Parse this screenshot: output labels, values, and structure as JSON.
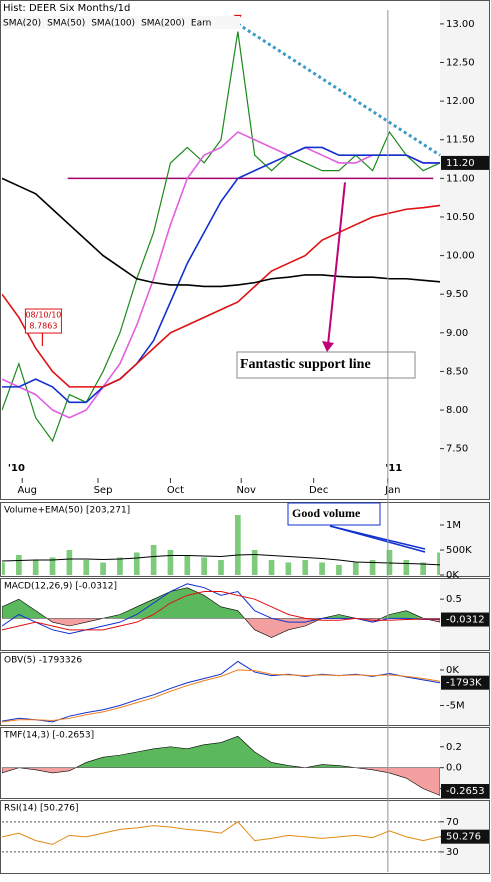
{
  "chart_data": [
    {
      "type": "price",
      "title": "Hist: DEER Six Months/1d",
      "x": [
        0,
        1,
        2,
        3,
        4,
        5,
        6,
        7,
        8,
        9,
        10,
        11,
        12,
        13,
        14,
        15,
        16,
        17,
        18,
        19,
        20,
        21,
        22,
        23,
        24,
        25,
        26
      ],
      "xlim": [
        0,
        26
      ],
      "xticks": [
        {
          "value": 1.2,
          "label": "Aug"
        },
        {
          "value": 5.7,
          "label": "Sep"
        },
        {
          "value": 10,
          "label": "Oct"
        },
        {
          "value": 14.2,
          "label": "Nov"
        },
        {
          "value": 18.5,
          "label": "Dec"
        },
        {
          "value": 22.9,
          "label": "Jan"
        }
      ],
      "year_ticks": [
        {
          "value": 0.5,
          "label": "'10"
        },
        {
          "value": 22.9,
          "label": "'11"
        }
      ],
      "ylim": [
        7.12,
        13.18
      ],
      "yticks": [
        {
          "value": 7.5,
          "label": "7.50"
        },
        {
          "value": 8,
          "label": "8.00"
        },
        {
          "value": 8.5,
          "label": "8.50"
        },
        {
          "value": 9,
          "label": "9.00"
        },
        {
          "value": 9.5,
          "label": "9.50"
        },
        {
          "value": 10,
          "label": "10.00"
        },
        {
          "value": 10.5,
          "label": "10.50"
        },
        {
          "value": 11,
          "label": "11.00"
        },
        {
          "value": 11.5,
          "label": "11.50"
        },
        {
          "value": 12,
          "label": "12.00"
        },
        {
          "value": 12.5,
          "label": "12.50"
        },
        {
          "value": 13,
          "label": "13.00"
        }
      ],
      "color": "#1a8a1a",
      "values": [
        8.0,
        8.6,
        7.9,
        7.6,
        8.2,
        8.1,
        8.5,
        9.0,
        9.7,
        10.3,
        11.2,
        11.4,
        11.2,
        11.5,
        12.9,
        11.3,
        11.1,
        11.3,
        11.2,
        11.1,
        11.1,
        11.3,
        11.1,
        11.6,
        11.3,
        11.1,
        11.2
      ],
      "series": [
        {
          "name": "SMA(20)",
          "color": "#e060e0",
          "type": "line",
          "values": [
            8.4,
            8.3,
            8.2,
            8.0,
            7.9,
            8.0,
            8.3,
            8.6,
            9.1,
            9.7,
            10.4,
            11.0,
            11.3,
            11.4,
            11.6,
            11.5,
            11.4,
            11.3,
            11.4,
            11.3,
            11.2,
            11.2,
            11.3,
            11.3,
            11.3,
            11.2,
            11.2
          ]
        },
        {
          "name": "SMA(50)",
          "color": "#1030d0",
          "type": "line",
          "values": [
            8.3,
            8.3,
            8.4,
            8.3,
            8.1,
            8.1,
            8.3,
            8.4,
            8.6,
            8.9,
            9.4,
            9.9,
            10.3,
            10.7,
            11.0,
            11.1,
            11.2,
            11.3,
            11.4,
            11.4,
            11.3,
            11.3,
            11.3,
            11.3,
            11.3,
            11.2,
            11.2
          ]
        },
        {
          "name": "SMA(100)",
          "color": "#e01010",
          "type": "line",
          "values": [
            9.5,
            9.2,
            8.8,
            8.5,
            8.3,
            8.3,
            8.3,
            8.4,
            8.6,
            8.8,
            9.0,
            9.1,
            9.2,
            9.3,
            9.4,
            9.6,
            9.8,
            9.9,
            10.0,
            10.2,
            10.3,
            10.4,
            10.5,
            10.55,
            10.6,
            10.62,
            10.65
          ]
        },
        {
          "name": "SMA(200)",
          "color": "#000000",
          "type": "line",
          "values": [
            11.0,
            10.9,
            10.8,
            10.6,
            10.4,
            10.2,
            10.0,
            9.85,
            9.7,
            9.65,
            9.62,
            9.62,
            9.6,
            9.6,
            9.62,
            9.65,
            9.7,
            9.72,
            9.75,
            9.75,
            9.73,
            9.72,
            9.72,
            9.7,
            9.7,
            9.68,
            9.66
          ]
        }
      ],
      "earnings": {
        "name": "Earn",
        "color": "#e01010",
        "x": [
          14
        ],
        "values": [
          13.0
        ]
      },
      "current": {
        "value": 11.2,
        "label": "11.20"
      },
      "support": {
        "value": 11.0,
        "x": [
          3.9,
          25.6
        ],
        "color": "#a0006a"
      },
      "trendline": {
        "x": [
          14,
          26
        ],
        "values": [
          13.0,
          11.3
        ],
        "color": "#3a9ac8"
      },
      "highlight": {
        "label": [
          "08/10/10",
          "8.7863"
        ],
        "x": 2.4,
        "value": 8.79
      },
      "annotation": "Fantastic support line"
    },
    {
      "type": "volume",
      "title": "Volume+EMA(50) [203,271]",
      "x": [
        0,
        1,
        2,
        3,
        4,
        5,
        6,
        7,
        8,
        9,
        10,
        11,
        12,
        13,
        14,
        15,
        16,
        17,
        18,
        19,
        20,
        21,
        22,
        23,
        24,
        25,
        26
      ],
      "xlim": [
        0,
        26
      ],
      "ylim": [
        0,
        1400000
      ],
      "yticks": [
        {
          "value": 1000000,
          "label": "1M"
        },
        {
          "value": 500000,
          "label": "500K"
        },
        {
          "value": 0,
          "label": "0K"
        }
      ],
      "series": [
        {
          "type": "bar",
          "color": "#7ccc7c",
          "values": [
            250000,
            400000,
            300000,
            350000,
            500000,
            300000,
            250000,
            350000,
            450000,
            600000,
            500000,
            400000,
            350000,
            300000,
            1200000,
            500000,
            300000,
            250000,
            300000,
            250000,
            200000,
            250000,
            300000,
            500000,
            300000,
            250000,
            450000
          ]
        },
        {
          "type": "line",
          "color": "#000000",
          "values": [
            280000,
            290000,
            300000,
            300000,
            320000,
            320000,
            310000,
            320000,
            340000,
            370000,
            390000,
            390000,
            380000,
            370000,
            400000,
            410000,
            390000,
            370000,
            350000,
            330000,
            300000,
            260000,
            250000,
            240000,
            230000,
            220000,
            203271
          ]
        }
      ],
      "annotation": "Good volume"
    },
    {
      "type": "macd",
      "title": "MACD(12,26,9) [-0.0312]",
      "x": [
        0,
        1,
        2,
        3,
        4,
        5,
        6,
        7,
        8,
        9,
        10,
        11,
        12,
        13,
        14,
        15,
        16,
        17,
        18,
        19,
        20,
        21,
        22,
        23,
        24,
        25,
        26
      ],
      "xlim": [
        0,
        26
      ],
      "ylim": [
        -0.8,
        1.0
      ],
      "yticks": [
        0.5
      ],
      "series": [
        {
          "type": "area",
          "color": "#5cb85c",
          "color_neg": "#f4a0a0",
          "values": [
            0.3,
            0.5,
            0.2,
            -0.1,
            -0.2,
            -0.1,
            0.0,
            0.1,
            0.3,
            0.5,
            0.7,
            0.8,
            0.6,
            0.3,
            0.2,
            -0.3,
            -0.5,
            -0.3,
            -0.2,
            0.0,
            0.1,
            0.0,
            -0.1,
            0.1,
            0.2,
            0.0,
            -0.1
          ]
        },
        {
          "type": "line",
          "color": "#1030d0",
          "values": [
            -0.2,
            0.1,
            -0.1,
            -0.3,
            -0.4,
            -0.3,
            -0.2,
            -0.1,
            0.1,
            0.4,
            0.7,
            0.9,
            0.8,
            0.6,
            0.7,
            0.2,
            0.0,
            -0.1,
            -0.1,
            0.0,
            0.0,
            0.0,
            -0.1,
            0.0,
            0.0,
            -0.03,
            -0.0312
          ]
        },
        {
          "type": "line",
          "color": "#e01010",
          "values": [
            -0.3,
            -0.2,
            -0.1,
            -0.2,
            -0.3,
            -0.3,
            -0.3,
            -0.2,
            -0.1,
            0.1,
            0.4,
            0.6,
            0.7,
            0.7,
            0.6,
            0.5,
            0.3,
            0.1,
            0.0,
            -0.05,
            -0.05,
            0.0,
            -0.05,
            -0.05,
            -0.03,
            -0.02,
            -0.02
          ]
        }
      ],
      "current": -0.0312
    },
    {
      "type": "obv",
      "title": "OBV(5) -1793326",
      "x": [
        0,
        1,
        2,
        3,
        4,
        5,
        6,
        7,
        8,
        9,
        10,
        11,
        12,
        13,
        14,
        15,
        16,
        17,
        18,
        19,
        20,
        21,
        22,
        23,
        24,
        25,
        26
      ],
      "xlim": [
        0,
        26
      ],
      "ylim": [
        -7600000,
        2100000
      ],
      "yticks": [
        {
          "value": 0,
          "label": "0K"
        },
        {
          "value": -5000000,
          "label": "-5M"
        }
      ],
      "series": [
        {
          "type": "line",
          "color": "#1030d0",
          "values": [
            -7200000,
            -6800000,
            -7000000,
            -7300000,
            -6500000,
            -6000000,
            -5600000,
            -5000000,
            -4200000,
            -3500000,
            -2600000,
            -1800000,
            -1200000,
            -600000,
            1200000,
            -300000,
            -800000,
            -600000,
            -900000,
            -600000,
            -800000,
            -600000,
            -900000,
            -500000,
            -1000000,
            -1400000,
            -1793326
          ]
        },
        {
          "type": "line",
          "color": "#f08020",
          "values": [
            -7300000,
            -7000000,
            -7000000,
            -7100000,
            -6800000,
            -6300000,
            -5900000,
            -5300000,
            -4600000,
            -3900000,
            -3000000,
            -2200000,
            -1500000,
            -900000,
            0,
            -100000,
            -600000,
            -700000,
            -800000,
            -700000,
            -800000,
            -700000,
            -800000,
            -700000,
            -900000,
            -1200000,
            -1600000
          ]
        }
      ],
      "current": {
        "value": -1793326,
        "label": "-1793K"
      }
    },
    {
      "type": "tmf",
      "title": "TMF(14,3) [-0.2653]",
      "x": [
        0,
        1,
        2,
        3,
        4,
        5,
        6,
        7,
        8,
        9,
        10,
        11,
        12,
        13,
        14,
        15,
        16,
        17,
        18,
        19,
        20,
        21,
        22,
        23,
        24,
        25,
        26
      ],
      "xlim": [
        0,
        26
      ],
      "ylim": [
        -0.28,
        0.36
      ],
      "yticks": [
        0.2,
        {
          "value": 0,
          "label": "0.0"
        },
        -0.2
      ],
      "series": [
        {
          "type": "area",
          "color": "#5cb85c",
          "color_neg": "#f4a0a0",
          "values": [
            -0.05,
            0.0,
            -0.02,
            -0.05,
            -0.03,
            0.05,
            0.1,
            0.12,
            0.15,
            0.18,
            0.2,
            0.18,
            0.22,
            0.24,
            0.3,
            0.15,
            0.05,
            0.02,
            0.0,
            0.03,
            0.02,
            0.0,
            -0.02,
            -0.05,
            -0.1,
            -0.2,
            -0.2653
          ]
        }
      ],
      "current": -0.2653
    },
    {
      "type": "rsi",
      "title": "RSI(14) [50.276]",
      "x": [
        0,
        1,
        2,
        3,
        4,
        5,
        6,
        7,
        8,
        9,
        10,
        11,
        12,
        13,
        14,
        15,
        16,
        17,
        18,
        19,
        20,
        21,
        22,
        23,
        24,
        25,
        26
      ],
      "xlim": [
        0,
        26
      ],
      "ylim": [
        6,
        95
      ],
      "yticks": [
        70,
        50,
        30
      ],
      "grid": [
        70,
        30
      ],
      "series": [
        {
          "type": "line",
          "color": "#e08a10",
          "values": [
            50,
            55,
            45,
            40,
            52,
            50,
            55,
            60,
            62,
            65,
            63,
            60,
            58,
            55,
            70,
            45,
            48,
            52,
            50,
            48,
            50,
            52,
            49,
            58,
            50,
            45,
            50.276
          ]
        }
      ],
      "current": 50.276
    }
  ]
}
